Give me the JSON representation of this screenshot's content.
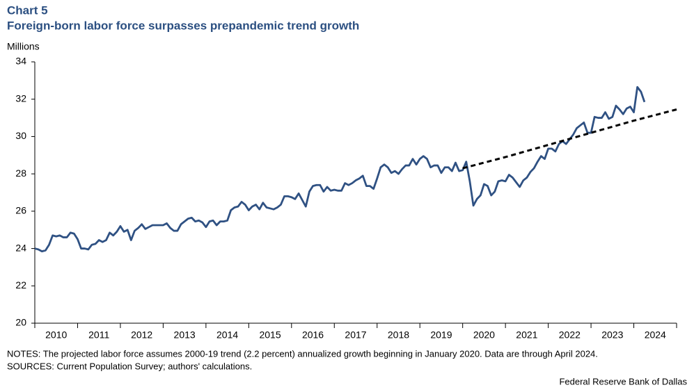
{
  "chart_data": {
    "type": "line",
    "title": "Chart 5",
    "subtitle": "Foreign-born labor force surpasses prepandemic trend growth",
    "y_label": "Millions",
    "notes": "NOTES: The projected labor force assumes 2000-19 trend (2.2 percent) annualized growth beginning in January 2020. Data are through April 2024.",
    "sources": "SOURCES: Current Population Survey; authors' calculations.",
    "credit": "Federal Reserve Bank of Dallas",
    "xlim": [
      2010,
      2025
    ],
    "xticks": [
      {
        "value": 2010,
        "label": "2010"
      },
      {
        "value": 2011,
        "label": "2011"
      },
      {
        "value": 2012,
        "label": "2012"
      },
      {
        "value": 2013,
        "label": "2013"
      },
      {
        "value": 2014,
        "label": "2014"
      },
      {
        "value": 2015,
        "label": "2015"
      },
      {
        "value": 2016,
        "label": "2016"
      },
      {
        "value": 2017,
        "label": "2017"
      },
      {
        "value": 2018,
        "label": "2018"
      },
      {
        "value": 2019,
        "label": "2019"
      },
      {
        "value": 2020,
        "label": "2020"
      },
      {
        "value": 2021,
        "label": "2021"
      },
      {
        "value": 2022,
        "label": "2022"
      },
      {
        "value": 2023,
        "label": "2023"
      },
      {
        "value": 2024,
        "label": "2024"
      }
    ],
    "ylim": [
      20,
      34
    ],
    "yticks": [
      20,
      22,
      24,
      26,
      28,
      30,
      32,
      34
    ],
    "grid": false,
    "series": [
      {
        "color": "#2f5183",
        "dash": false,
        "x": [
          2010.0,
          2010.083,
          2010.167,
          2010.25,
          2010.333,
          2010.417,
          2010.5,
          2010.583,
          2010.667,
          2010.75,
          2010.833,
          2010.917,
          2011.0,
          2011.083,
          2011.167,
          2011.25,
          2011.333,
          2011.417,
          2011.5,
          2011.583,
          2011.667,
          2011.75,
          2011.833,
          2011.917,
          2012.0,
          2012.083,
          2012.167,
          2012.25,
          2012.333,
          2012.417,
          2012.5,
          2012.583,
          2012.667,
          2012.75,
          2012.833,
          2012.917,
          2013.0,
          2013.083,
          2013.167,
          2013.25,
          2013.333,
          2013.417,
          2013.5,
          2013.583,
          2013.667,
          2013.75,
          2013.833,
          2013.917,
          2014.0,
          2014.083,
          2014.167,
          2014.25,
          2014.333,
          2014.417,
          2014.5,
          2014.583,
          2014.667,
          2014.75,
          2014.833,
          2014.917,
          2015.0,
          2015.083,
          2015.167,
          2015.25,
          2015.333,
          2015.417,
          2015.5,
          2015.583,
          2015.667,
          2015.75,
          2015.833,
          2015.917,
          2016.0,
          2016.083,
          2016.167,
          2016.25,
          2016.333,
          2016.417,
          2016.5,
          2016.583,
          2016.667,
          2016.75,
          2016.833,
          2016.917,
          2017.0,
          2017.083,
          2017.167,
          2017.25,
          2017.333,
          2017.417,
          2017.5,
          2017.583,
          2017.667,
          2017.75,
          2017.833,
          2017.917,
          2018.0,
          2018.083,
          2018.167,
          2018.25,
          2018.333,
          2018.417,
          2018.5,
          2018.583,
          2018.667,
          2018.75,
          2018.833,
          2018.917,
          2019.0,
          2019.083,
          2019.167,
          2019.25,
          2019.333,
          2019.417,
          2019.5,
          2019.583,
          2019.667,
          2019.75,
          2019.833,
          2019.917,
          2020.0,
          2020.083,
          2020.167,
          2020.25,
          2020.333,
          2020.417,
          2020.5,
          2020.583,
          2020.667,
          2020.75,
          2020.833,
          2020.917,
          2021.0,
          2021.083,
          2021.167,
          2021.25,
          2021.333,
          2021.417,
          2021.5,
          2021.583,
          2021.667,
          2021.75,
          2021.833,
          2021.917,
          2022.0,
          2022.083,
          2022.167,
          2022.25,
          2022.333,
          2022.417,
          2022.5,
          2022.583,
          2022.667,
          2022.75,
          2022.833,
          2022.917,
          2023.0,
          2023.083,
          2023.167,
          2023.25,
          2023.333,
          2023.417,
          2023.5,
          2023.583,
          2023.667,
          2023.75,
          2023.833,
          2023.917,
          2024.0,
          2024.083,
          2024.167,
          2024.25
        ],
        "values": [
          24.0,
          23.95,
          23.85,
          23.9,
          24.2,
          24.7,
          24.65,
          24.7,
          24.6,
          24.6,
          24.85,
          24.8,
          24.5,
          24.0,
          24.0,
          23.95,
          24.2,
          24.25,
          24.45,
          24.35,
          24.45,
          24.85,
          24.7,
          24.9,
          25.2,
          24.9,
          25.0,
          24.45,
          24.95,
          25.1,
          25.3,
          25.05,
          25.15,
          25.25,
          25.25,
          25.25,
          25.25,
          25.35,
          25.1,
          24.95,
          24.95,
          25.3,
          25.45,
          25.6,
          25.65,
          25.45,
          25.5,
          25.4,
          25.15,
          25.45,
          25.5,
          25.25,
          25.45,
          25.45,
          25.5,
          26.05,
          26.2,
          26.25,
          26.5,
          26.35,
          26.05,
          26.25,
          26.35,
          26.1,
          26.45,
          26.2,
          26.15,
          26.1,
          26.2,
          26.35,
          26.8,
          26.8,
          26.75,
          26.65,
          26.95,
          26.6,
          26.25,
          27.05,
          27.35,
          27.4,
          27.4,
          27.05,
          27.3,
          27.1,
          27.15,
          27.1,
          27.1,
          27.5,
          27.4,
          27.5,
          27.65,
          27.75,
          27.9,
          27.35,
          27.35,
          27.2,
          27.75,
          28.35,
          28.5,
          28.35,
          28.05,
          28.15,
          28.0,
          28.25,
          28.45,
          28.45,
          28.8,
          28.5,
          28.8,
          28.95,
          28.8,
          28.35,
          28.45,
          28.45,
          28.05,
          28.35,
          28.35,
          28.15,
          28.6,
          28.15,
          28.2,
          28.65,
          27.6,
          26.3,
          26.65,
          26.85,
          27.45,
          27.35,
          26.85,
          27.05,
          27.6,
          27.65,
          27.6,
          27.95,
          27.8,
          27.55,
          27.3,
          27.65,
          27.8,
          28.1,
          28.3,
          28.65,
          28.95,
          28.8,
          29.35,
          29.35,
          29.2,
          29.6,
          29.75,
          29.6,
          29.85,
          30.1,
          30.45,
          30.6,
          30.75,
          30.2,
          30.2,
          31.05,
          31.0,
          31.0,
          31.3,
          30.95,
          31.05,
          31.65,
          31.45,
          31.2,
          31.5,
          31.6,
          31.3,
          32.65,
          32.4,
          31.85
        ]
      },
      {
        "color": "#000000",
        "dash": true,
        "x": [
          2020.0,
          2021.0,
          2022.0,
          2023.0,
          2024.0,
          2025.0
        ],
        "values": [
          28.3,
          28.9,
          29.55,
          30.2,
          30.85,
          31.45
        ]
      }
    ]
  }
}
